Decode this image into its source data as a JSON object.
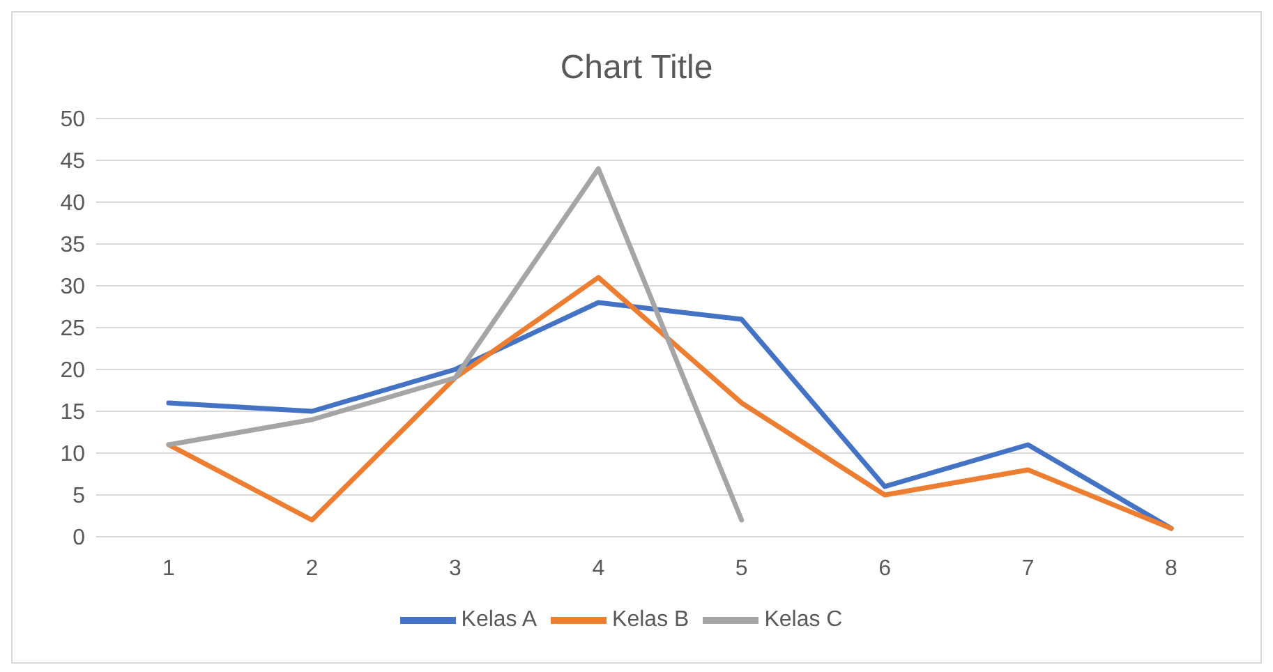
{
  "chart_data": {
    "type": "line",
    "title": "Chart Title",
    "categories": [
      "1",
      "2",
      "3",
      "4",
      "5",
      "6",
      "7",
      "8"
    ],
    "series": [
      {
        "name": "Kelas A",
        "color": "#4472c4",
        "values": [
          16,
          15,
          20,
          28,
          26,
          6,
          11,
          1
        ]
      },
      {
        "name": "Kelas B",
        "color": "#ed7d31",
        "values": [
          11,
          2,
          19,
          31,
          16,
          5,
          8,
          1
        ]
      },
      {
        "name": "Kelas C",
        "color": "#a5a5a5",
        "values": [
          11,
          14,
          19,
          44,
          2,
          null,
          null,
          null
        ]
      }
    ],
    "ylim": [
      0,
      50
    ],
    "yticks": [
      0,
      5,
      10,
      15,
      20,
      25,
      30,
      35,
      40,
      45,
      50
    ],
    "grid": "y",
    "legend": "bottom",
    "marker": "none",
    "line_style": "solid"
  }
}
